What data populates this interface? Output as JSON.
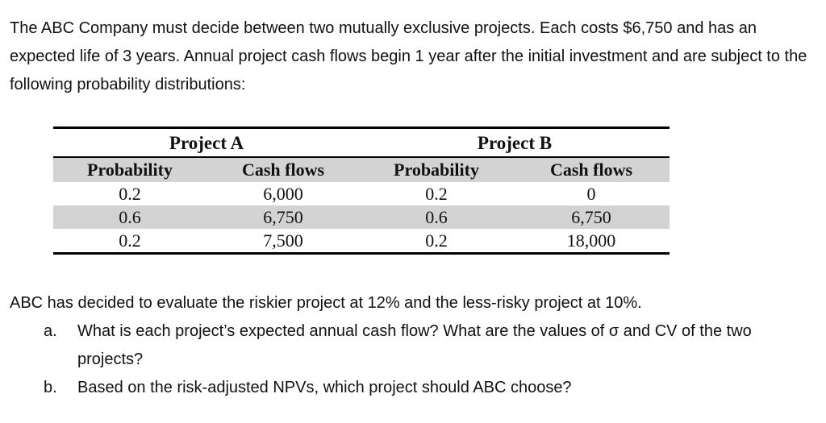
{
  "intro": "The ABC Company must decide between two mutually exclusive projects. Each costs $6,750 and has an expected life of 3 years. Annual project cash flows begin 1 year after the initial investment and are subject to the following probability distributions:",
  "table": {
    "group_a": "Project A",
    "group_b": "Project B",
    "headers": [
      "Probability",
      "Cash flows",
      "Probability",
      "Cash flows"
    ],
    "rows": [
      [
        "0.2",
        "6,000",
        "0.2",
        "0"
      ],
      [
        "0.6",
        "6,750",
        "0.6",
        "6,750"
      ],
      [
        "0.2",
        "7,500",
        "0.2",
        "18,000"
      ]
    ]
  },
  "statement": "ABC has decided to evaluate the riskier project at 12% and the less-risky project at 10%.",
  "questions": [
    {
      "letter": "a.",
      "text": "What is each project’s expected annual cash flow? What are the values of σ and CV of the two projects?"
    },
    {
      "letter": "b.",
      "text": "Based on the risk-adjusted NPVs, which project should ABC choose?"
    }
  ]
}
